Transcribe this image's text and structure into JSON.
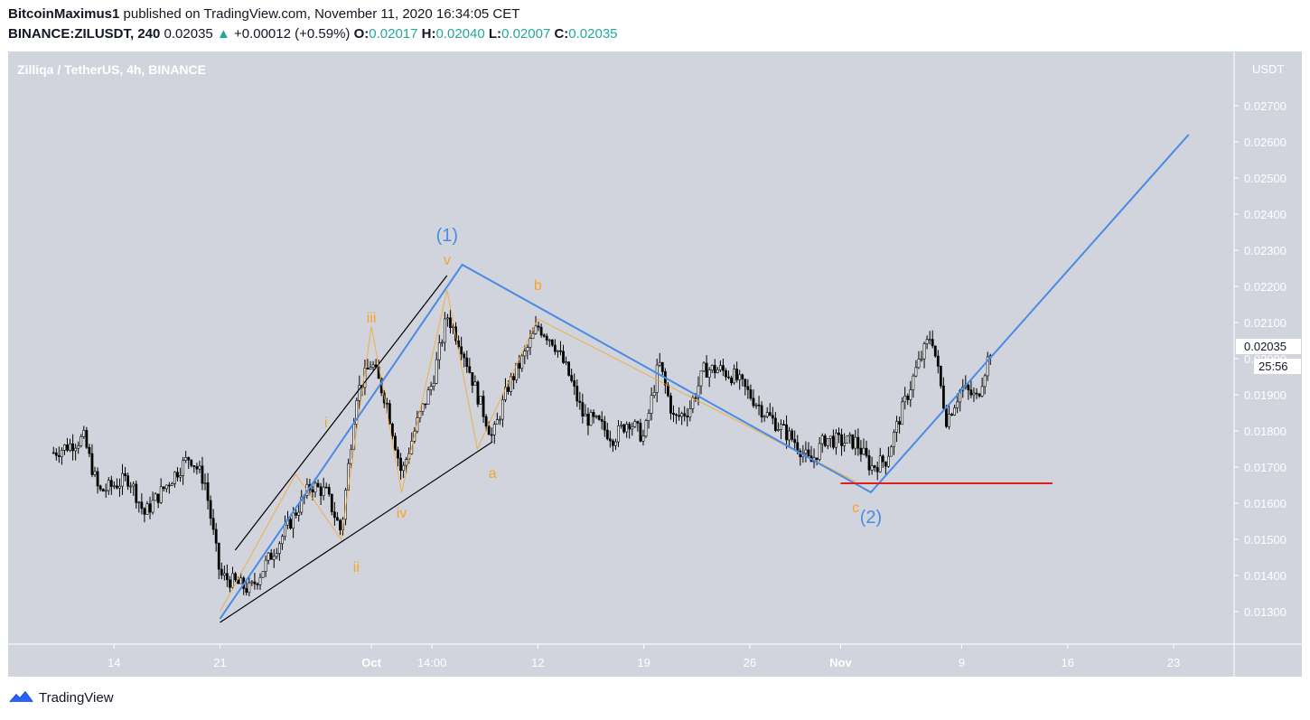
{
  "header": {
    "author": "BitcoinMaximus1",
    "published_text": "published on TradingView.com, November 11, 2020 16:34:05 CET",
    "symbol": "BINANCE:ZILUSDT, 240",
    "last": "0.02035",
    "change_arrow": "▲",
    "change": "+0.00012 (+0.59%)",
    "o_label": "O:",
    "o_value": "0.02017",
    "h_label": "H:",
    "h_value": "0.02040",
    "l_label": "L:",
    "l_value": "0.02007",
    "c_label": "C:",
    "c_value": "0.02035"
  },
  "footer": {
    "brand": "TradingView",
    "logo_icon": "tradingview-logo-icon"
  },
  "chart_data": {
    "type": "candlestick",
    "title": "Zilliqa / TetherUS, 4h, BINANCE",
    "currency_label": "USDT",
    "y_ticks": [
      "0.01300",
      "0.01400",
      "0.01500",
      "0.01600",
      "0.01700",
      "0.01800",
      "0.01900",
      "0.02000",
      "0.02100",
      "0.02200",
      "0.02300",
      "0.02400",
      "0.02500",
      "0.02600",
      "0.02700"
    ],
    "y_range": [
      0.0121,
      0.0285
    ],
    "x_ticks": [
      "14",
      "21",
      "Oct",
      "14:00",
      "12",
      "19",
      "26",
      "Nov",
      "9",
      "16",
      "23"
    ],
    "x_ticks_bold": [
      "Oct",
      "Nov"
    ],
    "price_label": "0.02035",
    "countdown_label": "25:56",
    "colors": {
      "background": "#d1d4dc",
      "wave_primary": "#4a8be4",
      "wave_minor": "#f5a623",
      "support": "#e02020",
      "candle": "#000000",
      "channel": "#000000"
    },
    "wave_labels_primary": [
      "(1)",
      "(2)"
    ],
    "wave_labels_minor": [
      "i",
      "ii",
      "iii",
      "iv",
      "v",
      "a",
      "b",
      "c"
    ],
    "support_level": 0.01655,
    "primary_wave_path": [
      {
        "date": "2020-09-21",
        "price": 0.0128
      },
      {
        "date": "2020-10-07",
        "price": 0.0226
      },
      {
        "date": "2020-11-03",
        "price": 0.0163
      },
      {
        "date": "2020-11-24",
        "price": 0.0262
      }
    ],
    "minor_wave_path": [
      {
        "date": "2020-09-21",
        "price": 0.013
      },
      {
        "date": "2020-09-26",
        "price": 0.0168
      },
      {
        "date": "2020-09-29",
        "price": 0.015
      },
      {
        "date": "2020-10-01",
        "price": 0.0209
      },
      {
        "date": "2020-10-03",
        "price": 0.0163
      },
      {
        "date": "2020-10-06",
        "price": 0.0219
      },
      {
        "date": "2020-10-08",
        "price": 0.0175
      },
      {
        "date": "2020-10-12",
        "price": 0.0211
      },
      {
        "date": "2020-11-02",
        "price": 0.0166
      }
    ],
    "channel_upper": [
      {
        "date": "2020-09-22",
        "price": 0.0147
      },
      {
        "date": "2020-10-06",
        "price": 0.0223
      }
    ],
    "channel_lower": [
      {
        "date": "2020-09-21",
        "price": 0.0127
      },
      {
        "date": "2020-10-09",
        "price": 0.0177
      }
    ],
    "price_series": [
      {
        "date": "2020-09-10",
        "price": 0.0174
      },
      {
        "date": "2020-09-12",
        "price": 0.0178
      },
      {
        "date": "2020-09-13",
        "price": 0.0163
      },
      {
        "date": "2020-09-15",
        "price": 0.0167
      },
      {
        "date": "2020-09-16",
        "price": 0.0157
      },
      {
        "date": "2020-09-18",
        "price": 0.0168
      },
      {
        "date": "2020-09-19",
        "price": 0.0173
      },
      {
        "date": "2020-09-20",
        "price": 0.0166
      },
      {
        "date": "2020-09-21",
        "price": 0.014
      },
      {
        "date": "2020-09-23",
        "price": 0.0136
      },
      {
        "date": "2020-09-25",
        "price": 0.015
      },
      {
        "date": "2020-09-27",
        "price": 0.0165
      },
      {
        "date": "2020-09-28",
        "price": 0.0163
      },
      {
        "date": "2020-09-29",
        "price": 0.0152
      },
      {
        "date": "2020-09-30",
        "price": 0.019
      },
      {
        "date": "2020-10-01",
        "price": 0.0199
      },
      {
        "date": "2020-10-02",
        "price": 0.0188
      },
      {
        "date": "2020-10-03",
        "price": 0.0168
      },
      {
        "date": "2020-10-04",
        "price": 0.0182
      },
      {
        "date": "2020-10-05",
        "price": 0.0193
      },
      {
        "date": "2020-10-06",
        "price": 0.0212
      },
      {
        "date": "2020-10-07",
        "price": 0.0203
      },
      {
        "date": "2020-10-08",
        "price": 0.019
      },
      {
        "date": "2020-10-09",
        "price": 0.0178
      },
      {
        "date": "2020-10-10",
        "price": 0.0192
      },
      {
        "date": "2020-10-11",
        "price": 0.02
      },
      {
        "date": "2020-10-12",
        "price": 0.0209
      },
      {
        "date": "2020-10-13",
        "price": 0.0205
      },
      {
        "date": "2020-10-14",
        "price": 0.0196
      },
      {
        "date": "2020-10-15",
        "price": 0.0184
      },
      {
        "date": "2020-10-16",
        "price": 0.0182
      },
      {
        "date": "2020-10-17",
        "price": 0.0178
      },
      {
        "date": "2020-10-18",
        "price": 0.0183
      },
      {
        "date": "2020-10-19",
        "price": 0.0178
      },
      {
        "date": "2020-10-20",
        "price": 0.0199
      },
      {
        "date": "2020-10-21",
        "price": 0.0183
      },
      {
        "date": "2020-10-22",
        "price": 0.0186
      },
      {
        "date": "2020-10-23",
        "price": 0.0197
      },
      {
        "date": "2020-10-24",
        "price": 0.0197
      },
      {
        "date": "2020-10-25",
        "price": 0.0195
      },
      {
        "date": "2020-10-26",
        "price": 0.019
      },
      {
        "date": "2020-10-27",
        "price": 0.0185
      },
      {
        "date": "2020-10-28",
        "price": 0.0181
      },
      {
        "date": "2020-10-29",
        "price": 0.0177
      },
      {
        "date": "2020-10-30",
        "price": 0.0171
      },
      {
        "date": "2020-10-31",
        "price": 0.0178
      },
      {
        "date": "2020-11-01",
        "price": 0.0177
      },
      {
        "date": "2020-11-02",
        "price": 0.0177
      },
      {
        "date": "2020-11-03",
        "price": 0.017
      },
      {
        "date": "2020-11-04",
        "price": 0.0172
      },
      {
        "date": "2020-11-05",
        "price": 0.0185
      },
      {
        "date": "2020-11-06",
        "price": 0.0197
      },
      {
        "date": "2020-11-07",
        "price": 0.0207
      },
      {
        "date": "2020-11-08",
        "price": 0.0183
      },
      {
        "date": "2020-11-09",
        "price": 0.0192
      },
      {
        "date": "2020-11-10",
        "price": 0.0189
      },
      {
        "date": "2020-11-11",
        "price": 0.0204
      }
    ]
  }
}
